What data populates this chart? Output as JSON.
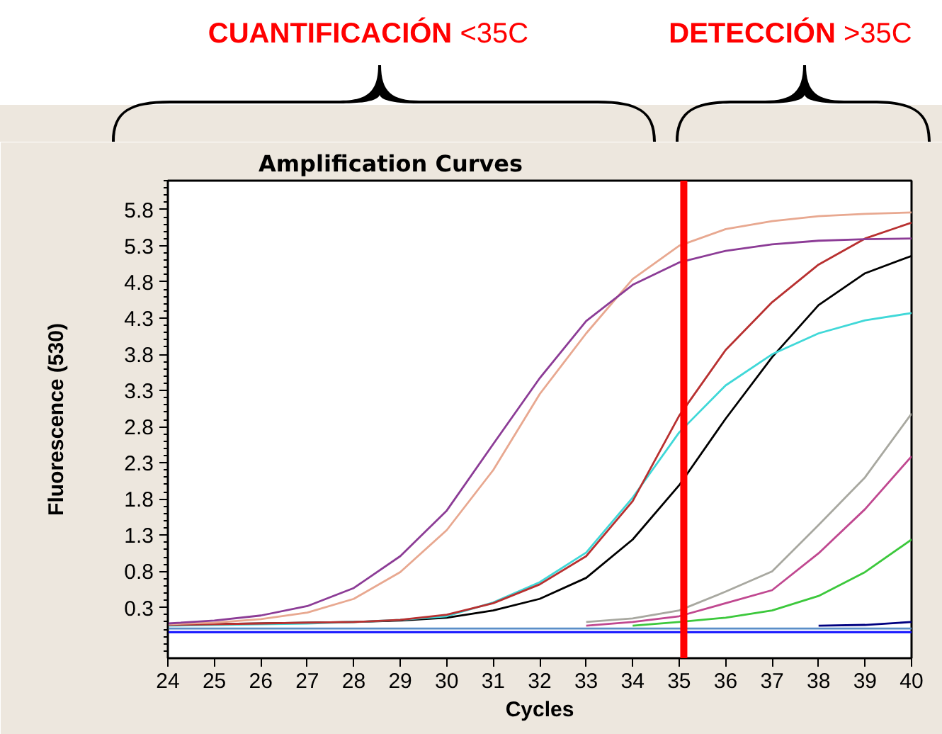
{
  "chart_data": {
    "type": "line",
    "title": "Amplification Curves",
    "xlabel": "Cycles",
    "ylabel": "Fluorescence (530)",
    "annotations": [
      "CUANTIFICACIÓN <35C",
      "DETECCIÓN >35C"
    ],
    "x": [
      24,
      25,
      26,
      27,
      28,
      29,
      30,
      31,
      32,
      33,
      34,
      35,
      36,
      37,
      38,
      39,
      40
    ],
    "xlim": [
      24,
      40
    ],
    "xticks": [
      24,
      25,
      26,
      27,
      28,
      29,
      30,
      31,
      32,
      33,
      34,
      35,
      36,
      37,
      38,
      39,
      40
    ],
    "ylim": [
      -0.4,
      6.2
    ],
    "yticks": [
      0.3,
      0.8,
      1.3,
      1.8,
      2.3,
      2.8,
      3.3,
      3.8,
      4.3,
      4.8,
      5.3,
      5.8
    ],
    "series": [
      {
        "color": "#5a8ec8",
        "values": [
          0.01,
          0.01,
          0.01,
          0.01,
          0.01,
          0.01,
          0.01,
          0.01,
          0.01,
          0.01,
          0.01,
          0.01,
          0.01,
          0.01,
          0.01,
          0.01,
          0.01
        ]
      },
      {
        "color": "#1010ff",
        "values": [
          -0.04,
          -0.04,
          -0.04,
          -0.04,
          -0.04,
          -0.04,
          -0.04,
          -0.04,
          -0.04,
          -0.04,
          -0.04,
          -0.04,
          -0.04,
          -0.04,
          -0.04,
          -0.04,
          -0.04
        ]
      },
      {
        "color": "#000080",
        "values": [
          null,
          null,
          null,
          null,
          null,
          null,
          null,
          null,
          null,
          null,
          null,
          null,
          null,
          null,
          0.05,
          0.06,
          0.1
        ]
      },
      {
        "color": "#3cc83c",
        "values": [
          null,
          null,
          null,
          null,
          null,
          null,
          null,
          null,
          null,
          null,
          0.05,
          0.1,
          0.16,
          0.26,
          0.46,
          0.79,
          1.24
        ]
      },
      {
        "color": "#c04890",
        "values": [
          null,
          null,
          null,
          null,
          null,
          null,
          null,
          null,
          null,
          0.05,
          0.1,
          0.18,
          0.36,
          0.54,
          1.05,
          1.66,
          2.39
        ]
      },
      {
        "color": "#a8a8a0",
        "values": [
          null,
          null,
          null,
          null,
          null,
          null,
          null,
          null,
          null,
          0.1,
          0.15,
          0.26,
          0.52,
          0.8,
          1.44,
          2.1,
          2.98
        ]
      },
      {
        "color": "#000000",
        "values": [
          0.06,
          0.07,
          0.08,
          0.09,
          0.1,
          0.12,
          0.16,
          0.26,
          0.42,
          0.71,
          1.24,
          1.99,
          2.91,
          3.76,
          4.48,
          4.92,
          5.16
        ]
      },
      {
        "color": "#40d8d8",
        "values": [
          0.05,
          0.06,
          0.07,
          0.08,
          0.1,
          0.13,
          0.18,
          0.37,
          0.65,
          1.06,
          1.82,
          2.72,
          3.37,
          3.8,
          4.09,
          4.27,
          4.37
        ]
      },
      {
        "color": "#b83030",
        "values": [
          0.06,
          0.07,
          0.08,
          0.09,
          0.1,
          0.13,
          0.2,
          0.36,
          0.62,
          1.01,
          1.77,
          2.95,
          3.86,
          4.52,
          5.04,
          5.4,
          5.62
        ]
      },
      {
        "color": "#e8a890",
        "values": [
          0.07,
          0.09,
          0.14,
          0.23,
          0.42,
          0.79,
          1.37,
          2.2,
          3.25,
          4.09,
          4.84,
          5.3,
          5.53,
          5.64,
          5.71,
          5.74,
          5.76
        ]
      },
      {
        "color": "#8c3c96",
        "values": [
          0.08,
          0.12,
          0.19,
          0.32,
          0.57,
          1.01,
          1.64,
          2.56,
          3.47,
          4.26,
          4.76,
          5.07,
          5.23,
          5.32,
          5.37,
          5.39,
          5.4
        ]
      }
    ],
    "ref_lines": [
      {
        "axis": "x",
        "value": 35.1,
        "color": "#ff0000"
      }
    ]
  }
}
